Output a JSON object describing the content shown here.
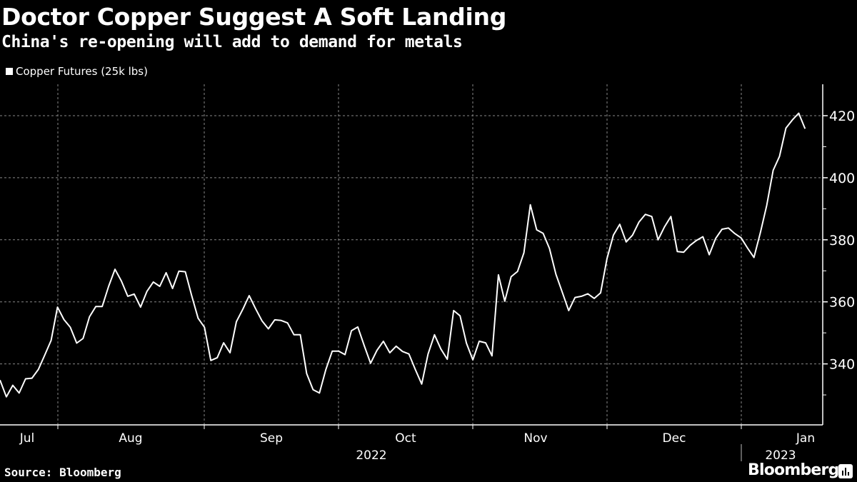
{
  "title": "Doctor Copper Suggest A Soft Landing",
  "subtitle": "China's re-opening will add to demand for metals",
  "source": "Source: Bloomberg",
  "brand": "Bloomberg",
  "colors": {
    "background": "#000000",
    "line": "#ffffff",
    "grid": "#888888"
  },
  "chart_data": {
    "type": "line",
    "title": "Doctor Copper Suggest A Soft Landing",
    "xlabel": "",
    "ylabel": "",
    "legend": {
      "position": "top-left",
      "entries": [
        "Copper Futures (25k lbs)"
      ]
    },
    "ylim": [
      320,
      430
    ],
    "yticks": [
      340,
      360,
      380,
      400,
      420
    ],
    "ytick_labels": [
      "340",
      "360",
      "380",
      "400",
      "420"
    ],
    "month_labels": [
      "Jul",
      "Aug",
      "Sep",
      "Oct",
      "Nov",
      "Dec",
      "Jan"
    ],
    "year_labels": [
      "2022",
      "2023"
    ],
    "grid": true,
    "series": [
      {
        "name": "Copper Futures (25k lbs)",
        "values": [
          334.8,
          329.4,
          333.1,
          330.6,
          335.2,
          335.4,
          338.2,
          342.8,
          347.6,
          358.3,
          354.3,
          351.8,
          346.7,
          348.2,
          355.2,
          358.5,
          358.5,
          365,
          370.5,
          366.7,
          361.8,
          362.5,
          358.3,
          363.4,
          366.4,
          365,
          369.4,
          364.3,
          369.9,
          369.7,
          362,
          354.7,
          351.8,
          341.1,
          342,
          346.8,
          343.6,
          353.6,
          357.6,
          362,
          357.8,
          353.9,
          351.3,
          354.2,
          354,
          353.2,
          349.4,
          349.4,
          336.9,
          331.7,
          330.6,
          338.2,
          344.1,
          344.1,
          343,
          350.7,
          351.9,
          345.9,
          340.2,
          344.4,
          347.3,
          343.6,
          345.7,
          344,
          343.2,
          338.2,
          333.5,
          343.2,
          349.4,
          344.8,
          341.5,
          357.2,
          355.5,
          346.7,
          341.3,
          347.3,
          346.8,
          342.6,
          368.7,
          360.2,
          368.1,
          369.8,
          375.8,
          391.3,
          383.2,
          382.1,
          377.2,
          368.9,
          363.1,
          357.2,
          361.4,
          361.8,
          362.6,
          361.1,
          362.9,
          373.9,
          381.5,
          385,
          379.3,
          381.5,
          385.7,
          388.2,
          387.5,
          380,
          384.2,
          387.5,
          376.2,
          376,
          378.2,
          379.8,
          381,
          375.2,
          380.4,
          383.4,
          383.8,
          382,
          380.6,
          377.3,
          374.3,
          382.3,
          391.1,
          402.4,
          406.9,
          416,
          418.6,
          420.8,
          415.8
        ]
      }
    ]
  }
}
